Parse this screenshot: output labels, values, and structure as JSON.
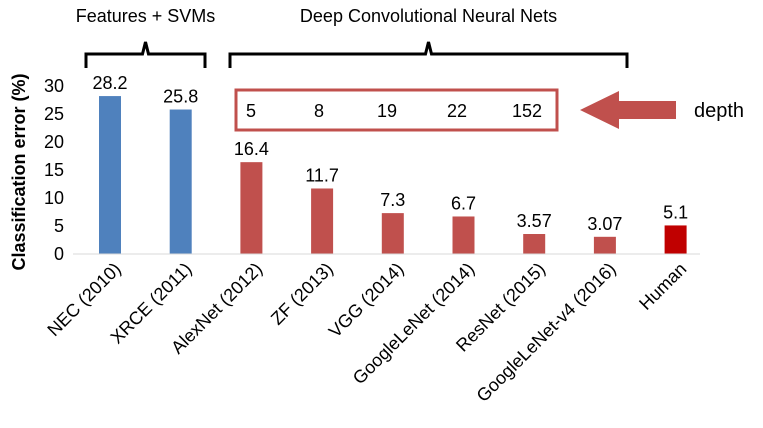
{
  "chart_data": {
    "type": "bar",
    "ylabel": "Classification error (%)",
    "ylim": [
      0,
      30
    ],
    "yticks": [
      0,
      5,
      10,
      15,
      20,
      25,
      30
    ],
    "categories": [
      "NEC (2010)",
      "XRCE (2011)",
      "AlexNet (2012)",
      "ZF (2013)",
      "VGG (2014)",
      "GoogleLeNet (2014)",
      "ResNet (2015)",
      "GoogleLeNet-v4 (2016)",
      "Human"
    ],
    "values": [
      28.2,
      25.8,
      16.4,
      11.7,
      7.3,
      6.7,
      3.57,
      3.07,
      5.1
    ],
    "value_labels": [
      "28.2",
      "25.8",
      "16.4",
      "11.7",
      "7.3",
      "6.7",
      "3.57",
      "3.07",
      "5.1"
    ],
    "bar_colors": [
      "#4f81bd",
      "#4f81bd",
      "#c0504d",
      "#c0504d",
      "#c0504d",
      "#c0504d",
      "#c0504d",
      "#c0504d",
      "#c00000"
    ],
    "groups": [
      {
        "label": "Features + SVMs",
        "from": 0,
        "to": 1
      },
      {
        "label": "Deep Convolutional Neural Nets",
        "from": 2,
        "to": 7
      }
    ],
    "depth": {
      "values": [
        "5",
        "8",
        "19",
        "22",
        "152"
      ],
      "label": "depth"
    },
    "grid": false,
    "legend": "none"
  },
  "colors": {
    "svm_bar": "#4f81bd",
    "cnn_bar": "#c0504d",
    "human_bar": "#c00000",
    "depth_box": "#c0504d",
    "arrow": "#c0504d"
  }
}
